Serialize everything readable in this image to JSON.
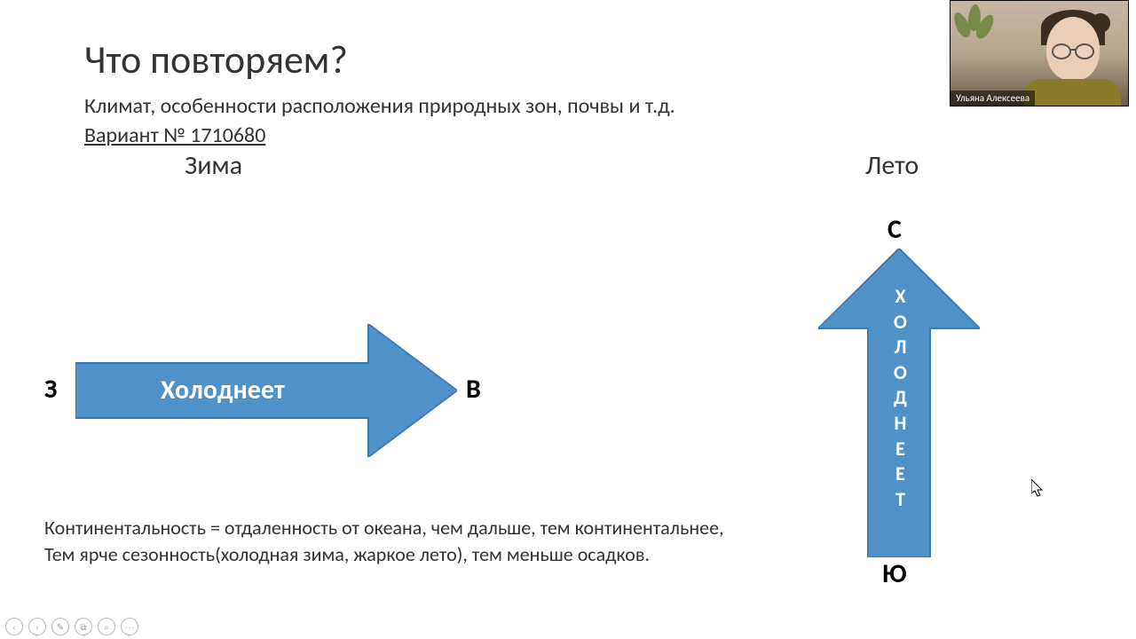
{
  "slide": {
    "title": "Что повторяем?",
    "subtitle": "Климат, особенности расположения природных зон, почвы и т.д.",
    "variant": "Вариант № 1710680",
    "winter_label": "Зима",
    "summer_label": "Лето",
    "west_letter": "З",
    "east_letter": "В",
    "north_letter": "С",
    "south_letter": "Ю",
    "h_arrow_text": "Холоднеет",
    "v_arrow_text": "ХОЛОДНЕЕТ",
    "bottom_line1": "Континентальность = отдаленность от океана, чем дальше, тем континентальнее,",
    "bottom_line2": "Тем ярче сезонность(холодная зима, жаркое лето), тем меньше осадков.",
    "arrow_color": "#4f91c9",
    "arrow_stroke": "#3f79ad"
  },
  "webcam": {
    "name": "Ульяна Алексеева"
  },
  "toolbar": {
    "prev": "‹",
    "next": "›",
    "pen": "✎",
    "copy": "⧉",
    "zoom": "⌕",
    "more": "⋯"
  }
}
